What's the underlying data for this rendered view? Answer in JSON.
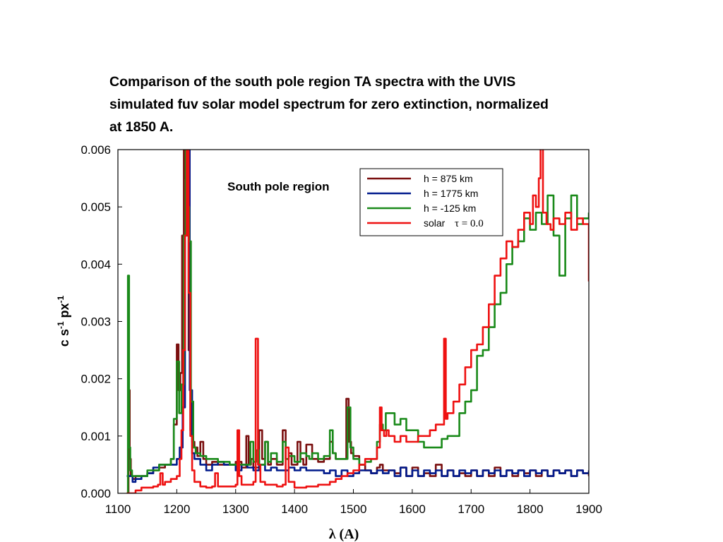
{
  "title_lines": [
    "Comparison of the south pole region TA spectra with the UVIS",
    "simulated fuv solar model spectrum for zero extinction, normalized",
    "at 1850 A."
  ],
  "chart_data": {
    "type": "line",
    "title": "Comparison of the south pole region TA spectra with the UVIS simulated fuv solar model spectrum for zero extinction, normalized at 1850 A.",
    "annotation": "South pole region",
    "xlabel": "λ (A)",
    "ylabel_main": "c s",
    "ylabel_sup1": "-1",
    "ylabel_mid": " px",
    "ylabel_sup2": "-1",
    "xlim": [
      1100,
      1900
    ],
    "ylim": [
      0,
      0.006
    ],
    "xticks": [
      1100,
      1200,
      1300,
      1400,
      1500,
      1600,
      1700,
      1800,
      1900
    ],
    "xtick_labels": [
      "1100",
      "1200",
      "1300",
      "1400",
      "1500",
      "1600",
      "1700",
      "1800",
      "1900"
    ],
    "yticks": [
      0,
      0.001,
      0.002,
      0.003,
      0.004,
      0.005,
      0.006
    ],
    "ytick_labels": [
      "0.000",
      "0.001",
      "0.002",
      "0.003",
      "0.004",
      "0.005",
      "0.006"
    ],
    "grid": false,
    "legend_position": "top-right",
    "series": [
      {
        "name": "h = 875 km",
        "color": "#7a0f0f",
        "x": [
          1115,
          1118,
          1120,
          1122,
          1125,
          1130,
          1140,
          1150,
          1160,
          1170,
          1180,
          1190,
          1195,
          1200,
          1203,
          1206,
          1209,
          1212,
          1214,
          1216,
          1218,
          1220,
          1223,
          1226,
          1230,
          1235,
          1240,
          1245,
          1250,
          1260,
          1270,
          1280,
          1290,
          1300,
          1310,
          1318,
          1322,
          1326,
          1330,
          1340,
          1345,
          1350,
          1355,
          1360,
          1370,
          1380,
          1385,
          1390,
          1395,
          1400,
          1405,
          1410,
          1415,
          1420,
          1430,
          1440,
          1450,
          1460,
          1465,
          1470,
          1480,
          1488,
          1492,
          1496,
          1500,
          1510,
          1520,
          1530,
          1540,
          1545,
          1550,
          1560,
          1570,
          1580,
          1590,
          1600,
          1610,
          1620,
          1630,
          1640,
          1650,
          1660,
          1670,
          1680,
          1690,
          1700,
          1710,
          1720,
          1730,
          1740,
          1750,
          1760,
          1770,
          1780,
          1790,
          1800,
          1810,
          1820,
          1830,
          1840,
          1850,
          1860,
          1870,
          1880,
          1890,
          1900
        ],
        "y": [
          0.0,
          0.0018,
          0.0006,
          0.0003,
          0.00025,
          0.0003,
          0.0003,
          0.00035,
          0.0004,
          0.00045,
          0.0005,
          0.0006,
          0.0012,
          0.0026,
          0.0018,
          0.0021,
          0.0045,
          0.006,
          0.0055,
          0.0048,
          0.0062,
          0.0025,
          0.0011,
          0.0009,
          0.0008,
          0.00065,
          0.0009,
          0.0006,
          0.0005,
          0.00055,
          0.0005,
          0.0005,
          0.0005,
          0.00055,
          0.00045,
          0.001,
          0.0005,
          0.0006,
          0.00045,
          0.0011,
          0.0006,
          0.0009,
          0.0005,
          0.0006,
          0.0005,
          0.0011,
          0.0006,
          0.0007,
          0.0005,
          0.0005,
          0.0009,
          0.0006,
          0.0005,
          0.00085,
          0.0006,
          0.00055,
          0.0006,
          0.0009,
          0.0007,
          0.0006,
          0.0006,
          0.00165,
          0.0009,
          0.0007,
          0.00065,
          0.0005,
          0.0004,
          0.00035,
          0.00045,
          0.0005,
          0.0004,
          0.0004,
          0.00035,
          0.00045,
          0.0003,
          0.00045,
          0.0003,
          0.00035,
          0.0003,
          0.0005,
          0.0003,
          0.0004,
          0.0003,
          0.00035,
          0.0003,
          0.0004,
          0.0003,
          0.0004,
          0.0003,
          0.00045,
          0.0003,
          0.0004,
          0.0003,
          0.0004,
          0.00035,
          0.0004,
          0.0003,
          0.0004,
          0.0003,
          0.0004,
          0.00035,
          0.0004,
          0.0003,
          0.0004,
          0.00035,
          0.0003
        ]
      },
      {
        "name": "h = 1775 km",
        "color": "#001a8c",
        "x": [
          1115,
          1120,
          1125,
          1130,
          1140,
          1150,
          1160,
          1170,
          1180,
          1190,
          1200,
          1205,
          1210,
          1214,
          1218,
          1222,
          1226,
          1230,
          1240,
          1250,
          1260,
          1270,
          1280,
          1290,
          1300,
          1310,
          1320,
          1330,
          1340,
          1350,
          1360,
          1370,
          1380,
          1390,
          1400,
          1410,
          1420,
          1430,
          1440,
          1450,
          1460,
          1470,
          1480,
          1490,
          1500,
          1510,
          1520,
          1530,
          1540,
          1550,
          1560,
          1570,
          1580,
          1590,
          1600,
          1610,
          1620,
          1630,
          1640,
          1650,
          1660,
          1670,
          1680,
          1690,
          1700,
          1710,
          1720,
          1730,
          1740,
          1750,
          1760,
          1770,
          1780,
          1790,
          1800,
          1810,
          1820,
          1830,
          1840,
          1850,
          1860,
          1870,
          1880,
          1890,
          1900
        ],
        "y": [
          0.0003,
          0.0003,
          0.0002,
          0.00025,
          0.0003,
          0.00035,
          0.00045,
          0.0005,
          0.0005,
          0.0005,
          0.0006,
          0.0008,
          0.0015,
          0.0045,
          0.0062,
          0.0018,
          0.0007,
          0.0006,
          0.0005,
          0.0004,
          0.0005,
          0.00055,
          0.0005,
          0.0005,
          0.0004,
          0.0005,
          0.00045,
          0.0004,
          0.0005,
          0.0004,
          0.00045,
          0.0004,
          0.0004,
          0.00045,
          0.0004,
          0.00045,
          0.0004,
          0.0004,
          0.0004,
          0.00035,
          0.0004,
          0.0003,
          0.0004,
          0.0003,
          0.00035,
          0.0004,
          0.0004,
          0.00035,
          0.0004,
          0.00035,
          0.0004,
          0.0003,
          0.00045,
          0.0003,
          0.0004,
          0.0003,
          0.0004,
          0.00035,
          0.0004,
          0.0003,
          0.0004,
          0.0003,
          0.0004,
          0.00035,
          0.0004,
          0.0003,
          0.0004,
          0.00035,
          0.0004,
          0.0003,
          0.0004,
          0.00035,
          0.0004,
          0.0003,
          0.0004,
          0.00035,
          0.0004,
          0.0003,
          0.0004,
          0.00035,
          0.0004,
          0.0003,
          0.0004,
          0.00035,
          0.0004
        ]
      },
      {
        "name": "h = -125 km",
        "color": "#1a8a1a",
        "x": [
          1115,
          1117,
          1119,
          1121,
          1124,
          1130,
          1140,
          1150,
          1160,
          1170,
          1180,
          1190,
          1195,
          1200,
          1204,
          1208,
          1212,
          1215,
          1218,
          1221,
          1224,
          1228,
          1232,
          1240,
          1250,
          1260,
          1270,
          1280,
          1290,
          1300,
          1310,
          1320,
          1325,
          1330,
          1335,
          1340,
          1350,
          1355,
          1360,
          1370,
          1380,
          1385,
          1390,
          1400,
          1410,
          1420,
          1425,
          1430,
          1440,
          1450,
          1460,
          1465,
          1470,
          1480,
          1490,
          1495,
          1500,
          1510,
          1520,
          1530,
          1540,
          1545,
          1550,
          1555,
          1560,
          1570,
          1580,
          1590,
          1600,
          1610,
          1620,
          1630,
          1640,
          1650,
          1660,
          1670,
          1680,
          1690,
          1700,
          1710,
          1720,
          1730,
          1740,
          1750,
          1760,
          1770,
          1780,
          1790,
          1800,
          1810,
          1820,
          1830,
          1840,
          1850,
          1860,
          1870,
          1880,
          1890,
          1900
        ],
        "y": [
          0.0,
          0.0038,
          0.0008,
          0.0004,
          0.0003,
          0.0003,
          0.0003,
          0.0004,
          0.0004,
          0.0005,
          0.0005,
          0.0006,
          0.0013,
          0.0023,
          0.0014,
          0.0019,
          0.0045,
          0.006,
          0.005,
          0.0044,
          0.0016,
          0.0008,
          0.0007,
          0.00065,
          0.0006,
          0.0006,
          0.00055,
          0.00055,
          0.0005,
          0.0005,
          0.0005,
          0.0005,
          0.0009,
          0.00055,
          0.00075,
          0.0005,
          0.0009,
          0.00055,
          0.0007,
          0.00055,
          0.0009,
          0.0006,
          0.00065,
          0.00055,
          0.0007,
          0.00065,
          0.0006,
          0.0007,
          0.0006,
          0.00065,
          0.0011,
          0.0007,
          0.0006,
          0.0006,
          0.0015,
          0.0008,
          0.0006,
          0.0005,
          0.00055,
          0.0006,
          0.0009,
          0.0012,
          0.0011,
          0.0014,
          0.0014,
          0.0012,
          0.0013,
          0.0011,
          0.0011,
          0.0009,
          0.0008,
          0.0008,
          0.0008,
          0.00095,
          0.001,
          0.001,
          0.0014,
          0.0016,
          0.0018,
          0.0024,
          0.0025,
          0.0029,
          0.0033,
          0.0035,
          0.004,
          0.0043,
          0.0044,
          0.0048,
          0.0046,
          0.0049,
          0.0047,
          0.0052,
          0.0045,
          0.0038,
          0.0048,
          0.0052,
          0.0047,
          0.0048,
          0.0049
        ]
      },
      {
        "name": "solar",
        "name_suffix": "τ = 0.0",
        "color": "#ee1111",
        "x": [
          1115,
          1120,
          1125,
          1130,
          1140,
          1150,
          1160,
          1168,
          1172,
          1176,
          1180,
          1190,
          1200,
          1205,
          1208,
          1211,
          1214,
          1217,
          1220,
          1223,
          1226,
          1230,
          1240,
          1250,
          1260,
          1265,
          1270,
          1280,
          1290,
          1300,
          1303,
          1306,
          1310,
          1320,
          1330,
          1334,
          1338,
          1342,
          1350,
          1360,
          1370,
          1380,
          1385,
          1390,
          1400,
          1410,
          1420,
          1430,
          1440,
          1450,
          1460,
          1470,
          1480,
          1490,
          1500,
          1510,
          1520,
          1530,
          1540,
          1545,
          1548,
          1552,
          1556,
          1560,
          1570,
          1580,
          1590,
          1600,
          1610,
          1620,
          1630,
          1640,
          1650,
          1654,
          1657,
          1660,
          1670,
          1680,
          1690,
          1700,
          1710,
          1720,
          1730,
          1740,
          1750,
          1760,
          1770,
          1780,
          1790,
          1800,
          1805,
          1810,
          1815,
          1818,
          1822,
          1828,
          1835,
          1840,
          1850,
          1860,
          1870,
          1880,
          1890,
          1900
        ],
        "y": [
          0.0,
          0.0,
          0.0,
          5e-05,
          0.0001,
          0.0001,
          0.00012,
          0.00015,
          0.00035,
          0.00015,
          0.0002,
          0.00025,
          0.0003,
          0.0006,
          0.0011,
          0.0025,
          0.0045,
          0.0062,
          0.0035,
          0.001,
          0.0004,
          0.0002,
          0.00012,
          0.0001,
          0.00012,
          0.00035,
          0.00012,
          0.00012,
          0.00012,
          0.00015,
          0.0011,
          0.0003,
          0.00015,
          0.00015,
          0.0002,
          0.0027,
          0.0005,
          0.0002,
          0.00015,
          0.00015,
          0.00012,
          0.00015,
          0.0008,
          0.0002,
          0.0001,
          0.0001,
          0.00012,
          0.00012,
          0.00015,
          0.00015,
          0.0002,
          0.00025,
          0.0003,
          0.00035,
          0.0004,
          0.0005,
          0.0006,
          0.0006,
          0.0008,
          0.0015,
          0.0011,
          0.001,
          0.0011,
          0.001,
          0.0009,
          0.001,
          0.0009,
          0.0009,
          0.001,
          0.001,
          0.0011,
          0.0012,
          0.0012,
          0.0027,
          0.0013,
          0.0014,
          0.0016,
          0.0019,
          0.0022,
          0.0025,
          0.0026,
          0.0029,
          0.0033,
          0.0038,
          0.0041,
          0.0044,
          0.0043,
          0.0046,
          0.0049,
          0.0047,
          0.0052,
          0.005,
          0.0055,
          0.0061,
          0.0049,
          0.0047,
          0.0046,
          0.0048,
          0.0047,
          0.0049,
          0.0046,
          0.0048,
          0.0047,
          0.0037
        ]
      }
    ]
  }
}
